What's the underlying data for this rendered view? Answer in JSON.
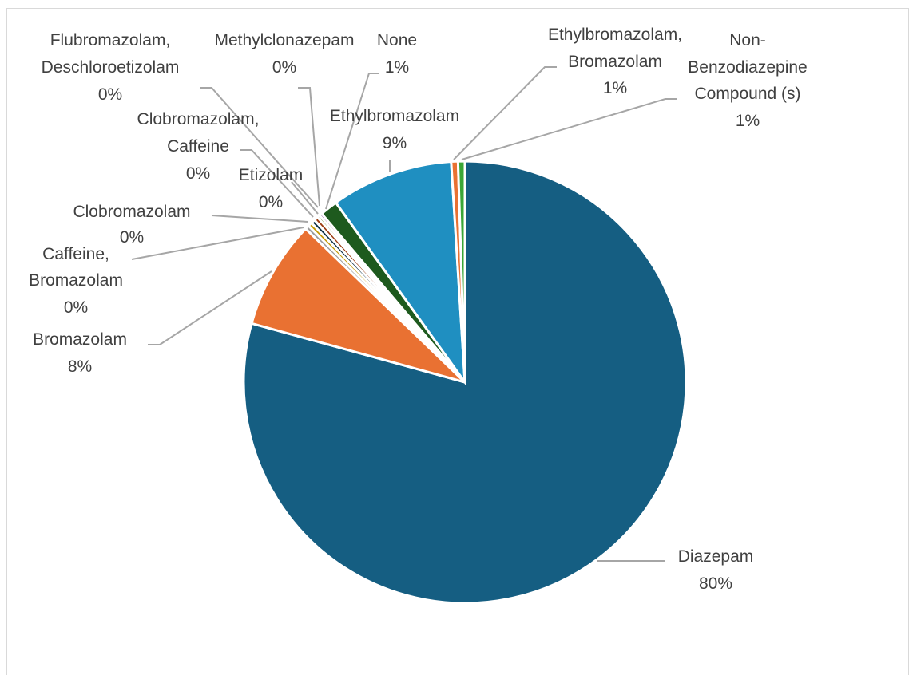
{
  "chart_data": {
    "type": "pie",
    "title": "",
    "legend": "none",
    "slices": [
      {
        "name": "Diazepam",
        "value": 80,
        "pct_label": "80%",
        "color": "#155e82"
      },
      {
        "name": "Bromazolam",
        "value": 8,
        "pct_label": "8%",
        "color": "#e97132"
      },
      {
        "name": "Caffeine, Bromazolam",
        "value": 0.3,
        "pct_label": "0%",
        "color": "#9a9a9a"
      },
      {
        "name": "Clobromazolam",
        "value": 0.3,
        "pct_label": "0%",
        "color": "#c49a06"
      },
      {
        "name": "Clobromazolam, Caffeine",
        "value": 0.3,
        "pct_label": "0%",
        "color": "#0e3247"
      },
      {
        "name": "Etizolam",
        "value": 0.3,
        "pct_label": "0%",
        "color": "#9b3c12"
      },
      {
        "name": "Flubromazolam, Deschloroetizolam",
        "value": 0.2,
        "pct_label": "0%",
        "color": "#6e8f3e"
      },
      {
        "name": "Methylclonazepam",
        "value": 0.2,
        "pct_label": "0%",
        "color": "#7a2f88"
      },
      {
        "name": "None",
        "value": 1.3,
        "pct_label": "1%",
        "color": "#1e5a1e"
      },
      {
        "name": "Ethylbromazolam",
        "value": 9,
        "pct_label": "9%",
        "color": "#1f8fc1"
      },
      {
        "name": "Ethylbromazolam, Bromazolam",
        "value": 0.5,
        "pct_label": "1%",
        "color": "#e97132"
      },
      {
        "name": "Non-Benzodiazepine Compound (s)",
        "value": 0.5,
        "pct_label": "1%",
        "color": "#3aa635"
      }
    ]
  }
}
